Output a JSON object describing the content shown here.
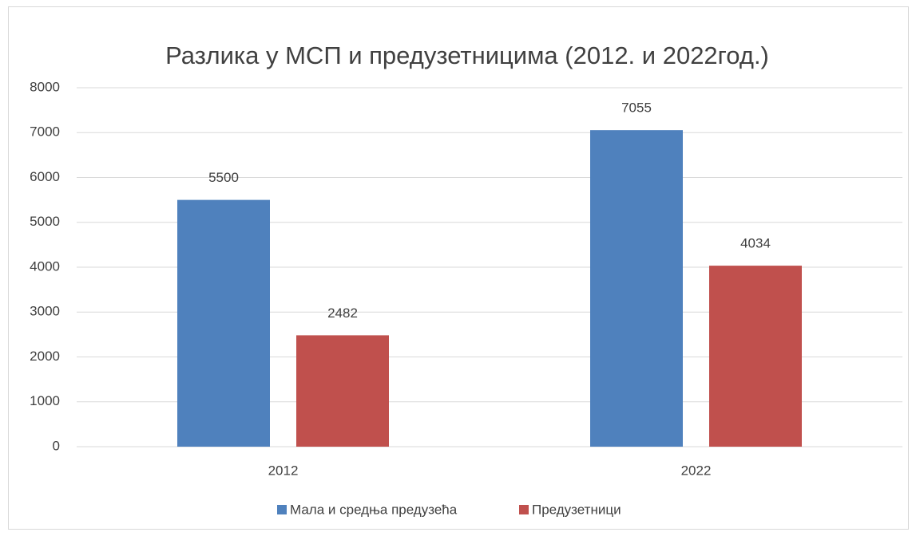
{
  "chart_data": {
    "type": "bar",
    "title": "Разлика у МСП и предузетницима (2012. и 2022год.)",
    "categories": [
      "2012",
      "2022"
    ],
    "series": [
      {
        "name": "Мала и средња предузећа",
        "color": "#4f81bd",
        "values": [
          5500,
          7055
        ]
      },
      {
        "name": "Предузетници",
        "color": "#c0504d",
        "values": [
          2482,
          4034
        ]
      }
    ],
    "ylim": [
      0,
      8000
    ],
    "yticks": [
      0,
      1000,
      2000,
      3000,
      4000,
      5000,
      6000,
      7000,
      8000
    ],
    "grid": true,
    "legend": "bottom"
  }
}
